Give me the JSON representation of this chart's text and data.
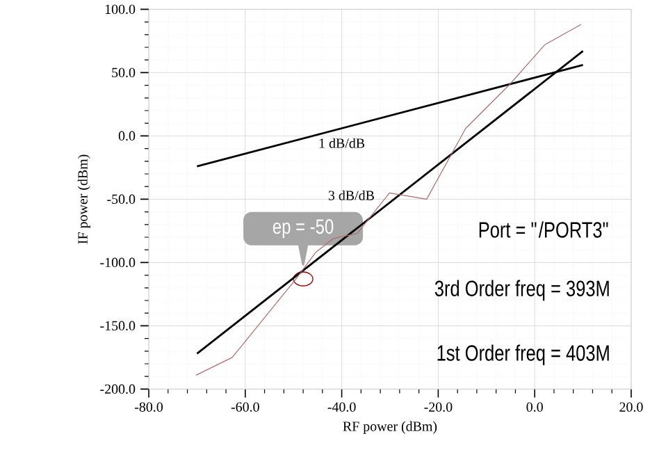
{
  "chart_data": {
    "type": "line",
    "xlabel": "RF power (dBm)",
    "ylabel": "IF power (dBm)",
    "series": [
      {
        "color": "#000000",
        "x": [
          -70,
          10
        ],
        "values": [
          -24,
          56
        ]
      },
      {
        "color": "#000000",
        "x": [
          -70,
          10
        ],
        "values": [
          -172,
          67
        ]
      },
      {
        "color": "#b06a6a",
        "x": [
          -70.2,
          -62.7,
          -49.5,
          -45.4,
          -41.7,
          -36.8,
          -30.1,
          -22.4,
          -14.3,
          -5.1,
          2.1,
          9.6
        ],
        "values": [
          -189,
          -175,
          -113,
          -92,
          -81,
          -77,
          -45,
          -50,
          6,
          41,
          72,
          88
        ]
      }
    ],
    "xlim": [
      -80,
      20
    ],
    "ylim": [
      -200,
      100
    ],
    "xticks": [
      {
        "value": -80,
        "label": "-80.0"
      },
      {
        "value": -60,
        "label": "-60.0"
      },
      {
        "value": -40,
        "label": "-40.0"
      },
      {
        "value": -20,
        "label": "-20.0"
      },
      {
        "value": 0,
        "label": "0.0"
      },
      {
        "value": 20,
        "label": "20.0"
      }
    ],
    "yticks": [
      {
        "value": -200,
        "label": "-200.0"
      },
      {
        "value": -150,
        "label": "-150.0"
      },
      {
        "value": -100,
        "label": "-100.0"
      },
      {
        "value": -50,
        "label": "-50.0"
      },
      {
        "value": 0,
        "label": "0.0"
      },
      {
        "value": 50,
        "label": "50.0"
      },
      {
        "value": 100,
        "label": "100.0"
      }
    ],
    "grid": true,
    "marker": "none",
    "line_style": "solid",
    "legend": false,
    "annotations": [
      "1 dB/dB",
      "3 dB/dB",
      {
        "text": "ep = -50",
        "x": -48,
        "y": -113
      },
      "Port = \"/PORT3\"",
      "3rd Order freq = 393M",
      "1st Order freq = 403M"
    ]
  }
}
